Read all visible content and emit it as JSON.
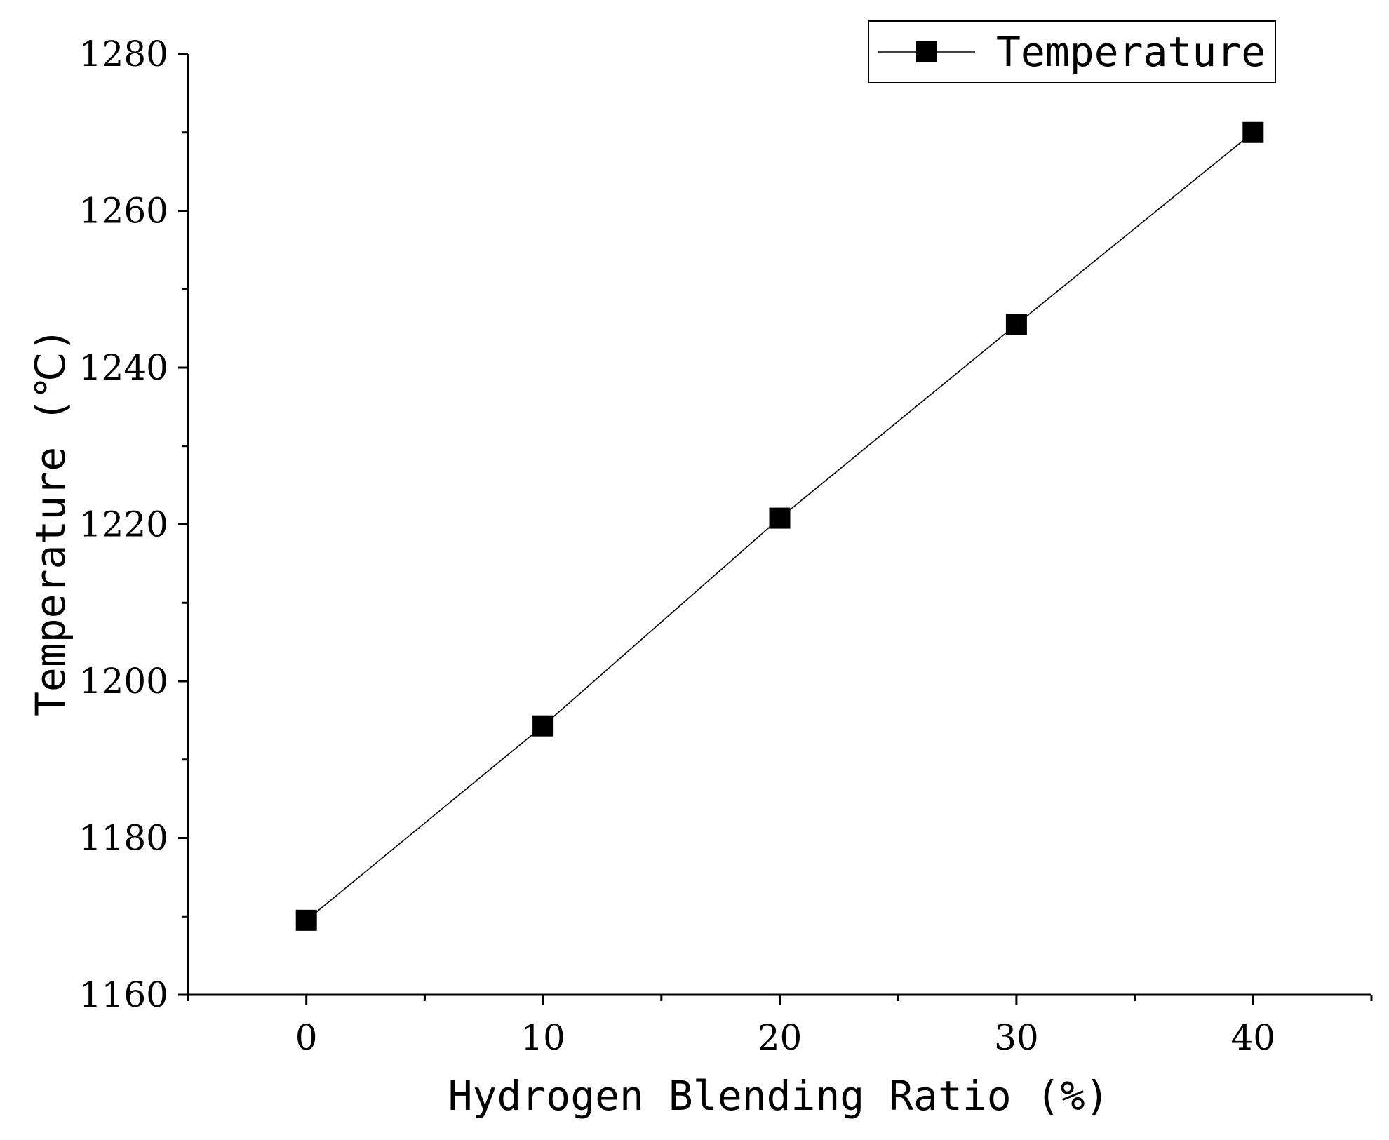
{
  "chart_data": {
    "type": "line",
    "title": "",
    "xlabel": "Hydrogen Blending Ratio (%)",
    "ylabel": "Temperature (℃)",
    "xlim": [
      -5,
      45
    ],
    "ylim": [
      1160,
      1280
    ],
    "x_ticks": [
      0,
      10,
      20,
      30,
      40
    ],
    "x_tick_labels": [
      "0",
      "10",
      "20",
      "30",
      "40"
    ],
    "x_minor_ticks": [
      -5,
      5,
      15,
      25,
      35,
      45
    ],
    "y_ticks": [
      1160,
      1180,
      1200,
      1220,
      1240,
      1260,
      1280
    ],
    "y_tick_labels": [
      "1160",
      "1180",
      "1200",
      "1220",
      "1240",
      "1260",
      "1280"
    ],
    "y_minor_ticks": [
      1170,
      1190,
      1210,
      1230,
      1250,
      1270
    ],
    "legend_position": "top-right",
    "series": [
      {
        "name": "Temperature",
        "marker": "square",
        "color": "#000000",
        "x": [
          0,
          10,
          20,
          30,
          40
        ],
        "values": [
          1169.5,
          1194.3,
          1220.8,
          1245.5,
          1270.0
        ]
      }
    ]
  }
}
